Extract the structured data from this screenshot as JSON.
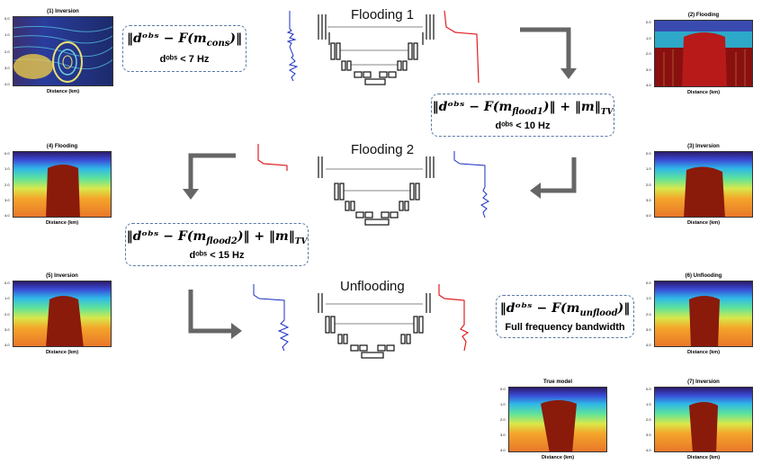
{
  "panels": {
    "p1": {
      "title": "(1) Inversion",
      "xlabel": "Distance (km)",
      "ylabel": "Depth (km)"
    },
    "p2": {
      "title": "(2) Flooding",
      "xlabel": "Distance (km)",
      "ylabel": "Depth (km)"
    },
    "p3": {
      "title": "(3) Inversion",
      "xlabel": "Distance (km)",
      "ylabel": "Depth (km)"
    },
    "p4": {
      "title": "(4) Flooding",
      "xlabel": "Distance (km)",
      "ylabel": "Depth (km)"
    },
    "p5": {
      "title": "(5) Inversion",
      "xlabel": "Distance (km)",
      "ylabel": "Depth (km)"
    },
    "p6": {
      "title": "(6) Unflooding",
      "xlabel": "Distance (km)",
      "ylabel": "Depth (km)"
    },
    "p7": {
      "title": "(7) Inversion",
      "xlabel": "Distance (km)",
      "ylabel": "Depth (km)"
    },
    "ptrue": {
      "title": "True model",
      "xlabel": "Distance (km)",
      "ylabel": "Depth (km)"
    }
  },
  "y_ticks": [
    "0.0",
    "0.5",
    "1.0",
    "1.5",
    "2.0",
    "2.5",
    "3.0",
    "3.5",
    "4.0"
  ],
  "x_ticks": [
    "0",
    "2",
    "4",
    "6",
    "8",
    "10",
    "12"
  ],
  "stages": {
    "flooding1": "Flooding 1",
    "flooding2": "Flooding 2",
    "unflooding": "Unflooding"
  },
  "boxes": {
    "b1": {
      "formula": "‖d^obs − F(m_cons)‖",
      "formula_main": "‖dᵒᵇˢ − F(m",
      "formula_sub": "cons",
      "formula_end": ")‖",
      "cond": "dᵒᵇˢ < 7 Hz"
    },
    "b2": {
      "formula_main": "‖dᵒᵇˢ − F(m",
      "formula_sub": "flood1",
      "formula_end": ")‖ + ‖m‖",
      "formula_tv": "TV",
      "cond": "dᵒᵇˢ < 10 Hz"
    },
    "b3": {
      "formula_main": "‖dᵒᵇˢ − F(m",
      "formula_sub": "flood2",
      "formula_end": ")‖ + ‖m‖",
      "formula_tv": "TV",
      "cond": "dᵒᵇˢ < 15 Hz"
    },
    "b4": {
      "formula_main": "‖dᵒᵇˢ − F(m",
      "formula_sub": "unflood",
      "formula_end": ")‖",
      "cond": "Full frequency bandwidth"
    }
  },
  "colors": {
    "arrow": "#666666",
    "red_trace": "#e02020",
    "blue_trace": "#1a2fbf",
    "box_border": "#5a79a8"
  }
}
